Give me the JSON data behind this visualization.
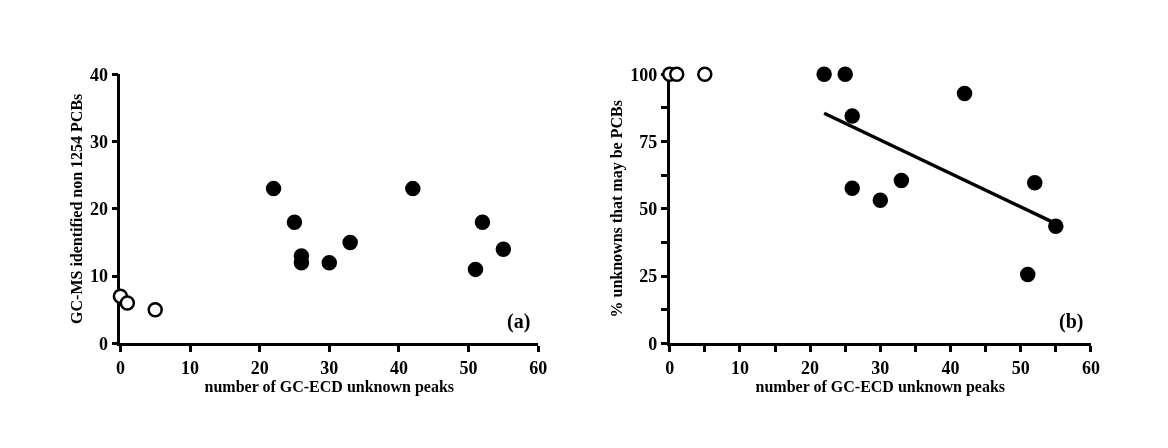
{
  "chart_data": [
    {
      "type": "scatter",
      "xlabel": "number of GC-ECD unknown peaks",
      "ylabel": "GC-MS identified non 1254 PCBs",
      "xlim": [
        0,
        60
      ],
      "ylim": [
        0,
        40
      ],
      "xticks": [
        0,
        10,
        20,
        30,
        40,
        50,
        60
      ],
      "yticks": [
        0,
        10,
        20,
        30,
        40
      ],
      "marker": "circle",
      "annotations": [
        "(a)"
      ],
      "series": [
        {
          "color": "#000000",
          "x": [
            22,
            25,
            26,
            26,
            30,
            33,
            42,
            51,
            52,
            55
          ],
          "values": [
            23,
            18,
            13,
            12,
            12,
            15,
            23,
            11,
            18,
            14
          ]
        },
        {
          "color": "#ffffff",
          "x": [
            0,
            1,
            5
          ],
          "values": [
            7,
            6,
            5
          ]
        }
      ]
    },
    {
      "type": "scatter",
      "xlabel": "number of GC-ECD unknown peaks",
      "ylabel": "% unknowns that may be PCBs",
      "xlim": [
        0,
        60
      ],
      "ylim": [
        0,
        100
      ],
      "xticks": [
        0,
        {
          "value": 5,
          "label": null
        },
        10,
        {
          "value": 15,
          "label": null
        },
        20,
        {
          "value": 25,
          "label": null
        },
        30,
        {
          "value": 35,
          "label": null
        },
        40,
        {
          "value": 45,
          "label": null
        },
        50,
        {
          "value": 55,
          "label": null
        },
        60
      ],
      "yticks": [
        0,
        {
          "value": 12.5,
          "label": null
        },
        25,
        {
          "value": 37.5,
          "label": null
        },
        50,
        {
          "value": 62.5,
          "label": null
        },
        75,
        {
          "value": 87.5,
          "label": null
        },
        100
      ],
      "marker": "circle",
      "annotations": [
        "(b)"
      ],
      "series": [
        {
          "color": "#000000",
          "x": [
            22,
            25,
            26,
            26,
            30,
            33,
            42,
            51,
            52,
            55
          ],
          "values": [
            100,
            100,
            84.5,
            57.6,
            53.2,
            60.5,
            92.8,
            25.6,
            59.7,
            43.5
          ]
        },
        {
          "color": "#ffffff",
          "x": [
            0,
            1,
            5
          ],
          "values": [
            100,
            100,
            100
          ]
        },
        {
          "type": "line",
          "color": "#000000",
          "marker": "none",
          "x": [
            22,
            55
          ],
          "values": [
            85.5,
            44.5
          ]
        }
      ]
    }
  ]
}
